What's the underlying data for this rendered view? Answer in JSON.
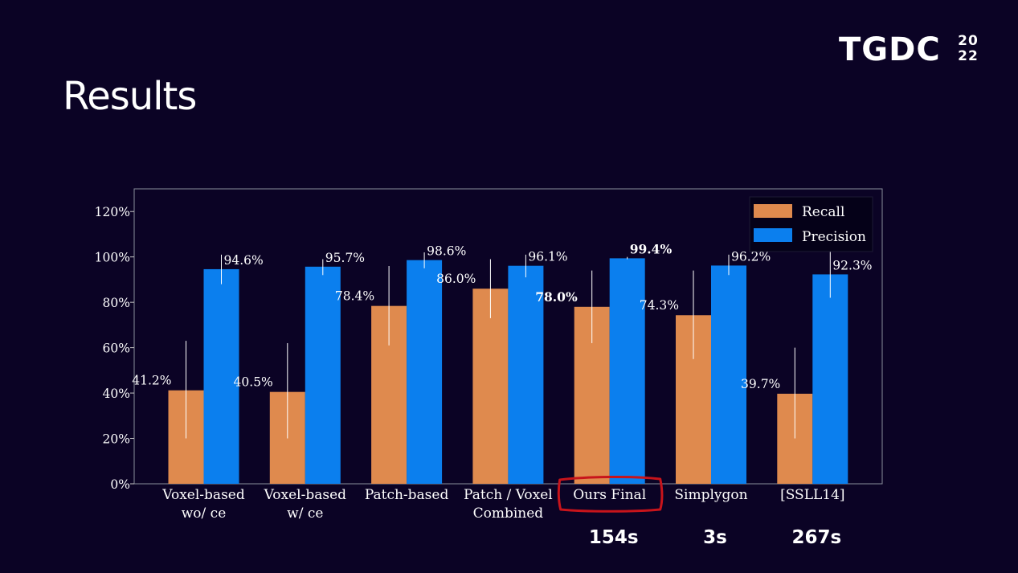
{
  "slide": {
    "title": "Results",
    "logo_text": "TGDC",
    "logo_year_top": "20",
    "logo_year_bottom": "22"
  },
  "chart_data": {
    "type": "bar",
    "categories": [
      "Voxel-based\nwo/ ce",
      "Voxel-based\nw/ ce",
      "Patch-based",
      "Patch / Voxel\nCombined",
      "Ours Final",
      "Simplygon",
      "[SSLL14]"
    ],
    "series": [
      {
        "name": "Recall",
        "color": "#df8a4e",
        "values": [
          41.2,
          40.5,
          78.4,
          86.0,
          78.0,
          74.3,
          39.7
        ],
        "labels": [
          "41.2%",
          "40.5%",
          "78.4%",
          "86.0%",
          "78.0%",
          "74.3%",
          "39.7%"
        ],
        "error_low": [
          20,
          20,
          61,
          73,
          62,
          55,
          20
        ],
        "error_high": [
          63,
          62,
          96,
          99,
          94,
          94,
          60
        ]
      },
      {
        "name": "Precision",
        "color": "#0b7fee",
        "values": [
          94.6,
          95.7,
          98.6,
          96.1,
          99.4,
          96.2,
          92.3
        ],
        "labels": [
          "94.6%",
          "95.7%",
          "98.6%",
          "96.1%",
          "99.4%",
          "96.2%",
          "92.3%"
        ],
        "error_low": [
          88,
          92,
          95,
          91,
          99,
          92,
          82
        ],
        "error_high": [
          101,
          99,
          102,
          101,
          100,
          101,
          105
        ]
      }
    ],
    "highlight_index": 4,
    "ylim": [
      0,
      130
    ],
    "yticks": [
      0,
      20,
      40,
      60,
      80,
      100,
      120
    ],
    "ytick_labels": [
      "0%",
      "20%",
      "40%",
      "60%",
      "80%",
      "100%",
      "120%"
    ],
    "legend_position": "top-right",
    "grid": false,
    "timings": [
      {
        "category_index": 4,
        "label": "154s"
      },
      {
        "category_index": 5,
        "label": "3s"
      },
      {
        "category_index": 6,
        "label": "267s"
      }
    ]
  }
}
